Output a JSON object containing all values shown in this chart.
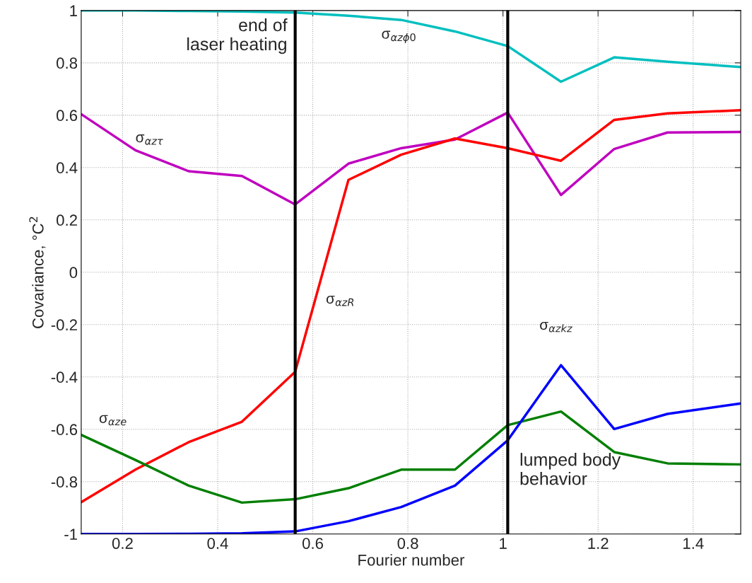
{
  "chart_data": {
    "type": "line",
    "xlabel": "Fourier number",
    "ylabel": "Covariance, °C$^{2}$",
    "x": [
      0.113,
      0.227,
      0.339,
      0.451,
      0.563,
      0.675,
      0.786,
      0.899,
      1.01,
      1.122,
      1.234,
      1.346,
      1.5
    ],
    "series": [
      {
        "name": "σ$_{αzϕ0}$",
        "color": "#00bfbf",
        "values": [
          1.0,
          1.0,
          0.998,
          0.996,
          0.992,
          0.98,
          0.964,
          0.92,
          0.864,
          0.728,
          0.821,
          0.804,
          0.784
        ]
      },
      {
        "name": "σ$_{αzτ}$",
        "color": "#bf00bf",
        "values": [
          0.604,
          0.466,
          0.386,
          0.368,
          0.259,
          0.415,
          0.474,
          0.507,
          0.61,
          0.295,
          0.471,
          0.534,
          0.536
        ]
      },
      {
        "name": "σ$_{αzR}$",
        "color": "#ff0000",
        "values": [
          -0.878,
          -0.754,
          -0.649,
          -0.571,
          -0.38,
          0.353,
          0.449,
          0.511,
          0.474,
          0.426,
          0.582,
          0.607,
          0.619
        ]
      },
      {
        "name": "σ$_{αze}$",
        "color": "#007f00",
        "values": [
          -0.621,
          -0.717,
          -0.815,
          -0.88,
          -0.867,
          -0.825,
          -0.754,
          -0.754,
          -0.584,
          -0.532,
          -0.687,
          -0.73,
          -0.734
        ]
      },
      {
        "name": "σ$_{αzkz}$",
        "color": "#0000ff",
        "values": [
          -1.0,
          -1.0,
          -0.999,
          -0.997,
          -0.99,
          -0.951,
          -0.897,
          -0.815,
          -0.642,
          -0.355,
          -0.599,
          -0.541,
          -0.501
        ]
      }
    ],
    "ref_lines": [
      {
        "axis": "x",
        "value": 0.563,
        "label": "end of\nlaser heating",
        "color": "#000000"
      },
      {
        "axis": "x",
        "value": 1.01,
        "label": "lumped body\nbehavior",
        "color": "#000000"
      }
    ],
    "xlim": [
      0.113,
      1.5
    ],
    "ylim": [
      -1,
      1
    ],
    "xticks": [
      0.2,
      0.4,
      0.6,
      0.8,
      1,
      1.2,
      1.4
    ],
    "yticks": [
      -1,
      -0.8,
      -0.6,
      -0.4,
      -0.2,
      0,
      0.2,
      0.4,
      0.6,
      0.8,
      1
    ],
    "grid": true,
    "line_style": "solid",
    "marker": "none",
    "legend": false
  }
}
